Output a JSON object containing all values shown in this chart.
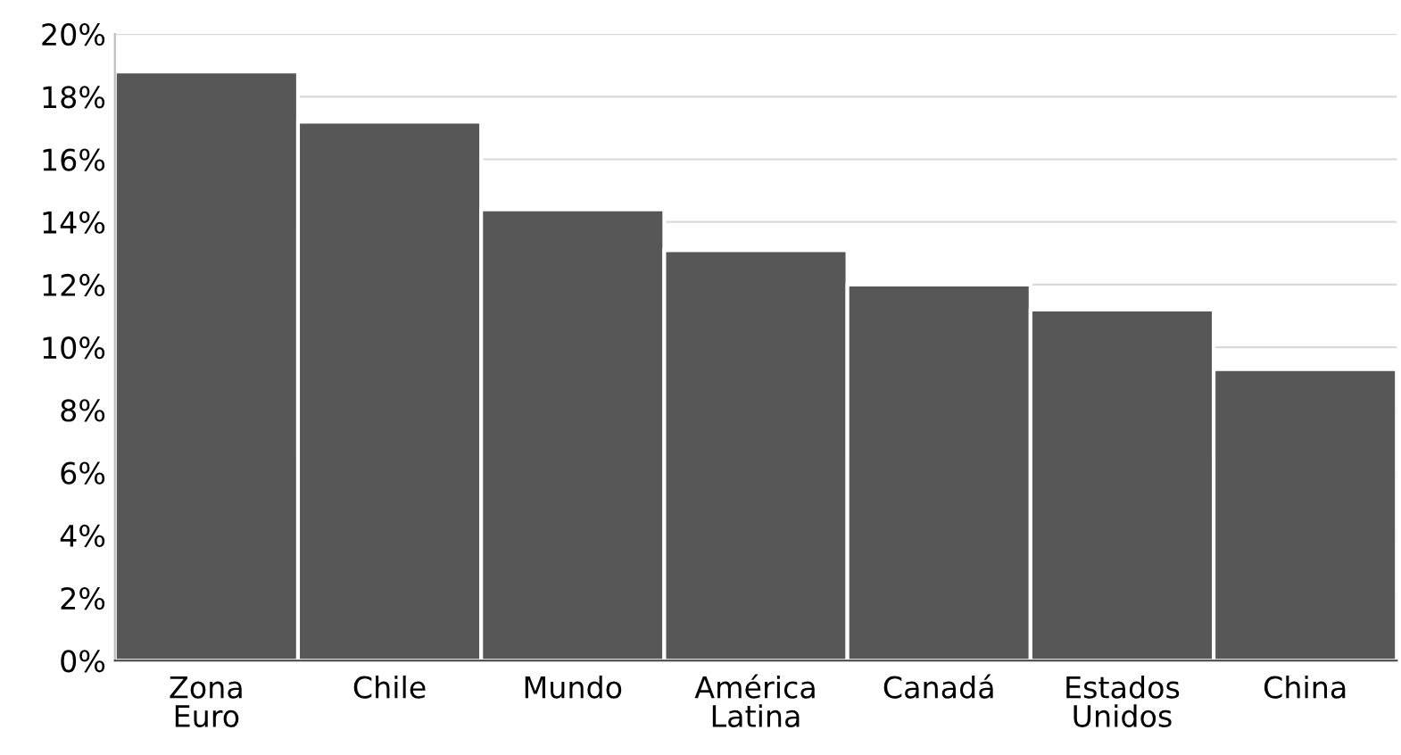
{
  "chart_data": {
    "type": "bar",
    "categories": [
      "Zona\nEuro",
      "Chile",
      "Mundo",
      "América\nLatina",
      "Canadá",
      "Estados\nUnidos",
      "China"
    ],
    "values": [
      18.8,
      17.2,
      14.4,
      13.1,
      12.0,
      11.2,
      9.3
    ],
    "color": "#575757",
    "ylim": [
      0,
      20
    ],
    "yticks": [
      {
        "value": 0,
        "label": "0%"
      },
      {
        "value": 2,
        "label": "2%"
      },
      {
        "value": 4,
        "label": "4%"
      },
      {
        "value": 6,
        "label": "6%"
      },
      {
        "value": 8,
        "label": "8%"
      },
      {
        "value": 10,
        "label": "10%"
      },
      {
        "value": 12,
        "label": "12%"
      },
      {
        "value": 14,
        "label": "14%"
      },
      {
        "value": 16,
        "label": "16%"
      },
      {
        "value": 18,
        "label": "18%"
      },
      {
        "value": 20,
        "label": "20%"
      }
    ],
    "grid": "y"
  }
}
